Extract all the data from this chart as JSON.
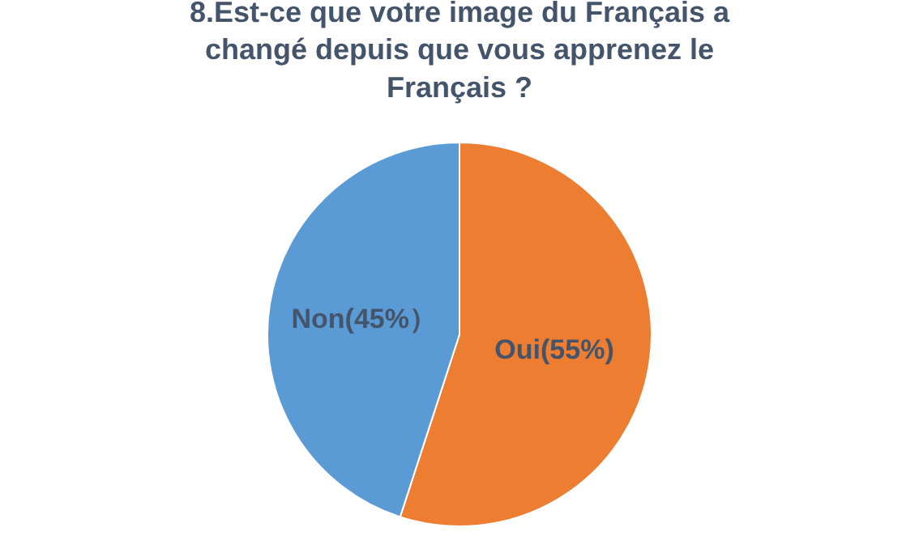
{
  "chart_data": {
    "type": "pie",
    "title": "8.Est-ce que votre image du Français a changé depuis que vous apprenez le Français ?",
    "categories": [
      "Oui(55%)",
      "Non(45%）"
    ],
    "values": [
      55,
      45
    ],
    "colors": [
      "#ed7d31",
      "#5b9bd5"
    ],
    "legend": false
  }
}
